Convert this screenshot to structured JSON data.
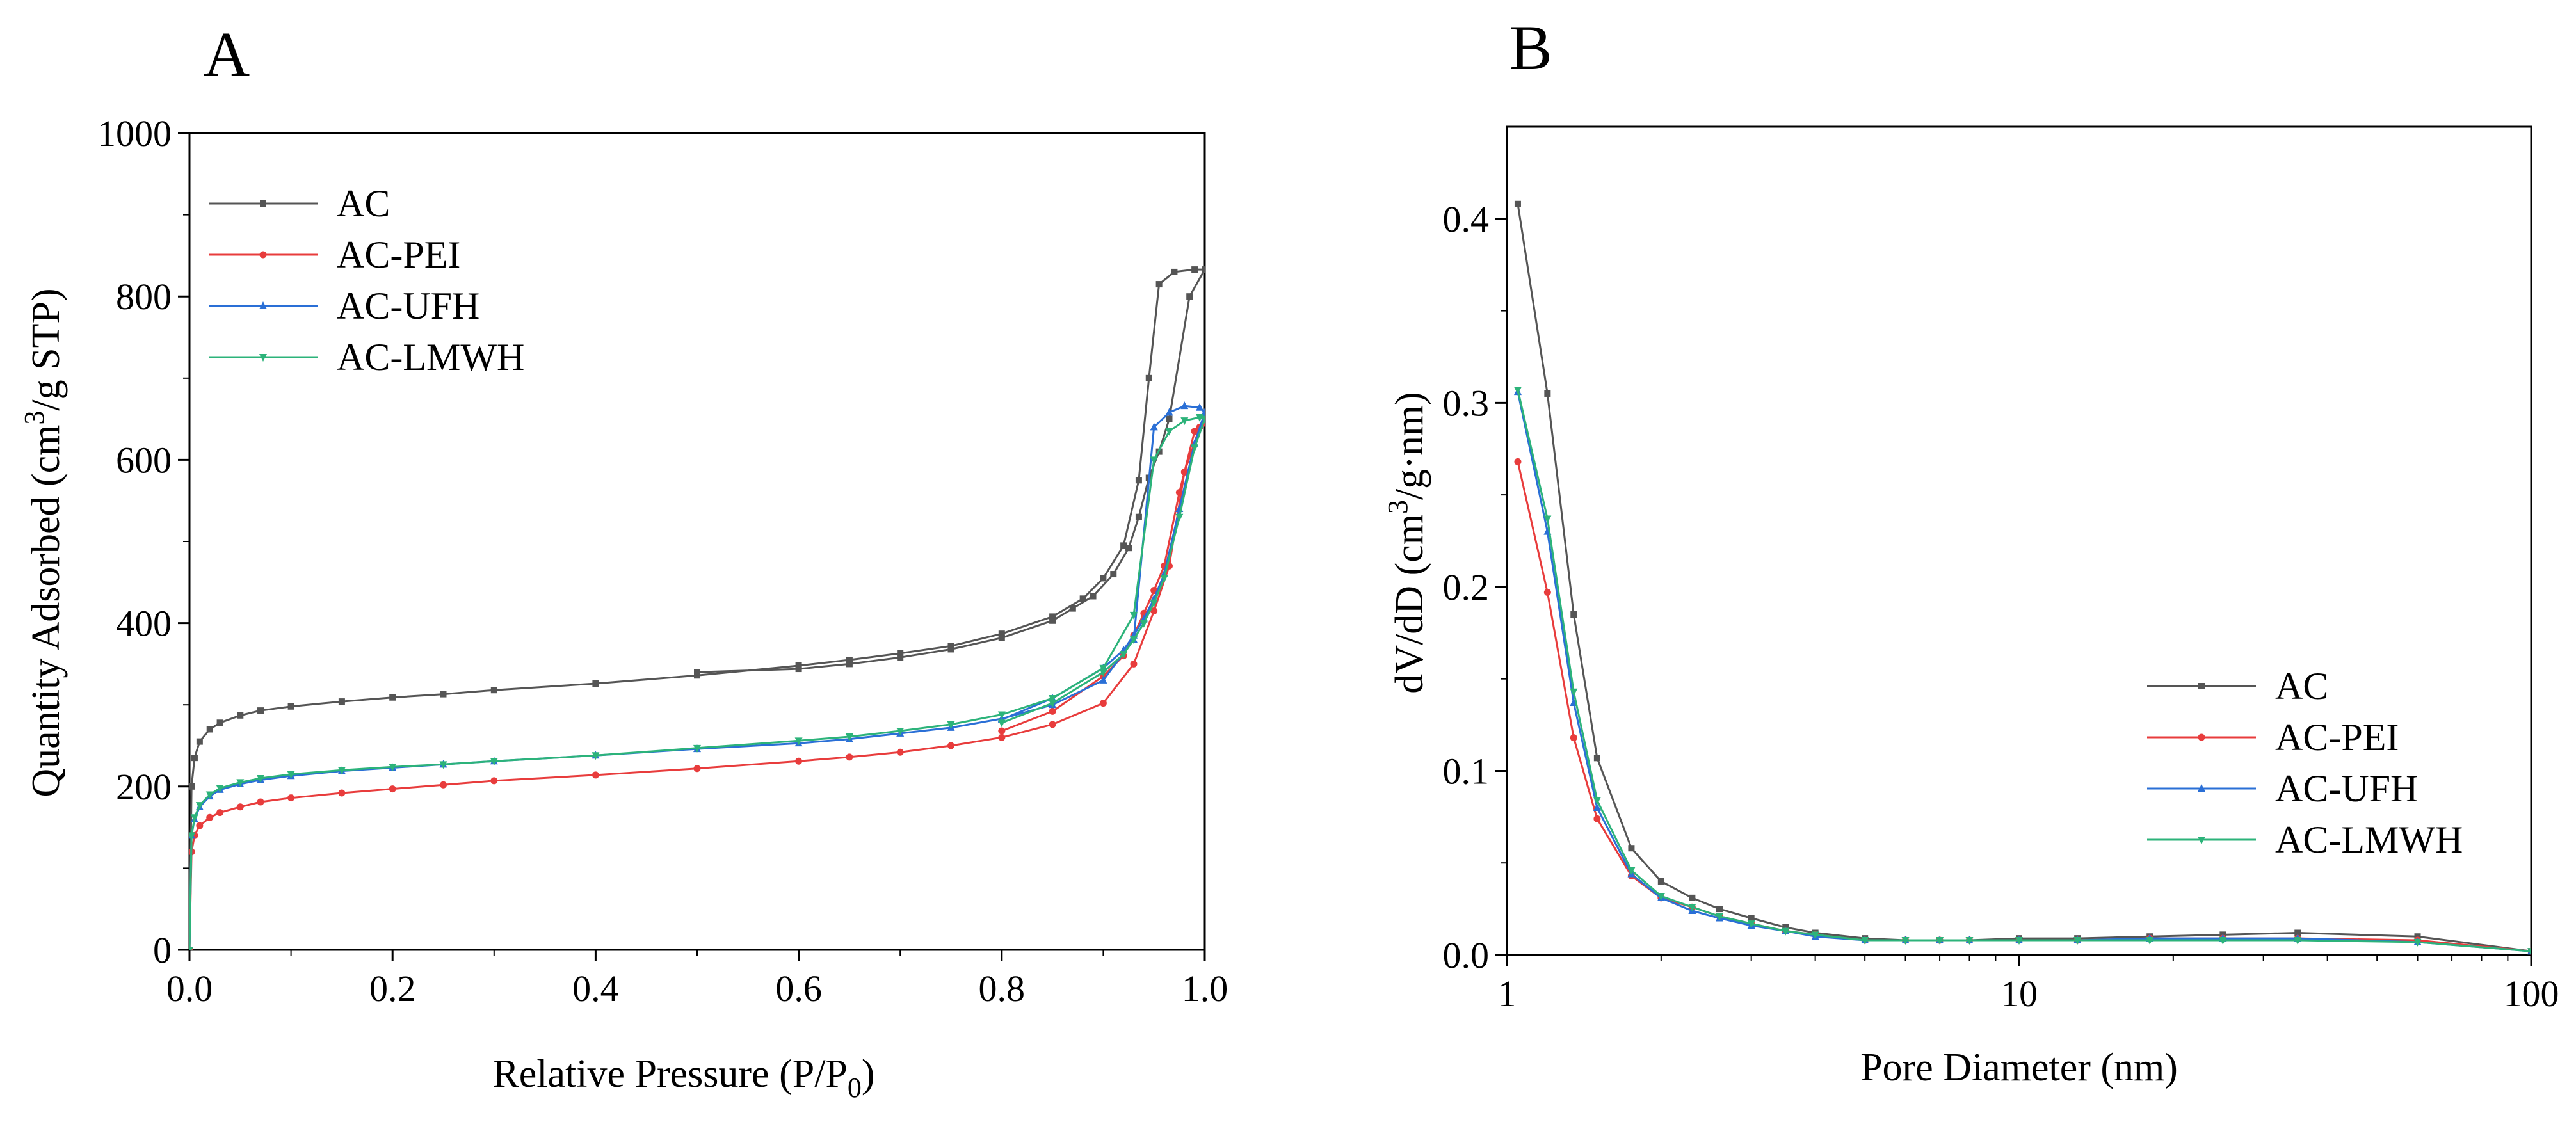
{
  "colors": {
    "AC": "#555555",
    "AC-PEI": "#e83c3c",
    "AC-UFH": "#2a6fd6",
    "AC-LMWH": "#2cb37a"
  },
  "chart_data": [
    {
      "panel": "A",
      "type": "line",
      "title": "",
      "xlabel_main": "Relative Pressure (P/P",
      "xlabel_sub": "0",
      "xlabel_close": ")",
      "ylabel_main": "Quantity Adsorbed (cm",
      "ylabel_sup": "3",
      "ylabel_rest": "/g STP)",
      "xlim": [
        0,
        1.0
      ],
      "ylim": [
        0,
        1000
      ],
      "xscale": "linear",
      "xticks": [
        0.0,
        0.2,
        0.4,
        0.6,
        0.8,
        1.0
      ],
      "xtick_labels": [
        "0.0",
        "0.2",
        "0.4",
        "0.6",
        "0.8",
        "1.0"
      ],
      "yticks": [
        0,
        200,
        400,
        600,
        800,
        1000
      ],
      "ytick_labels": [
        "0",
        "200",
        "400",
        "600",
        "800",
        "1000"
      ],
      "legend_position": "top-left",
      "series": [
        {
          "name": "AC",
          "x": [
            0.0,
            0.002,
            0.005,
            0.01,
            0.02,
            0.03,
            0.05,
            0.07,
            0.1,
            0.15,
            0.2,
            0.25,
            0.3,
            0.4,
            0.5,
            0.6,
            0.65,
            0.7,
            0.75,
            0.8,
            0.85,
            0.88,
            0.9,
            0.92,
            0.935,
            0.945,
            0.955,
            0.97,
            0.99,
            1.0,
            0.985,
            0.965,
            0.955,
            0.945,
            0.935,
            0.925,
            0.91,
            0.89,
            0.87,
            0.85,
            0.8,
            0.75,
            0.7,
            0.65,
            0.6,
            0.5
          ],
          "y": [
            0,
            200,
            235,
            255,
            270,
            278,
            287,
            293,
            298,
            304,
            309,
            313,
            318,
            326,
            336,
            348,
            355,
            363,
            372,
            387,
            408,
            430,
            455,
            495,
            575,
            700,
            815,
            830,
            833,
            833,
            800,
            650,
            610,
            578,
            530,
            492,
            460,
            433,
            418,
            403,
            382,
            368,
            358,
            350,
            344,
            340
          ]
        },
        {
          "name": "AC-PEI",
          "x": [
            0.0,
            0.002,
            0.005,
            0.01,
            0.02,
            0.03,
            0.05,
            0.07,
            0.1,
            0.15,
            0.2,
            0.25,
            0.3,
            0.4,
            0.5,
            0.6,
            0.65,
            0.7,
            0.75,
            0.8,
            0.85,
            0.9,
            0.93,
            0.95,
            0.965,
            0.98,
            0.995,
            1.0,
            0.99,
            0.975,
            0.96,
            0.95,
            0.94,
            0.93,
            0.92,
            0.9,
            0.85,
            0.8
          ],
          "y": [
            0,
            120,
            140,
            152,
            162,
            168,
            175,
            181,
            186,
            192,
            197,
            202,
            207,
            214,
            222,
            231,
            236,
            242,
            250,
            260,
            276,
            302,
            350,
            415,
            470,
            585,
            640,
            645,
            635,
            560,
            470,
            440,
            412,
            385,
            360,
            335,
            292,
            268
          ]
        },
        {
          "name": "AC-UFH",
          "x": [
            0.0,
            0.002,
            0.005,
            0.01,
            0.02,
            0.03,
            0.05,
            0.07,
            0.1,
            0.15,
            0.2,
            0.25,
            0.3,
            0.4,
            0.5,
            0.6,
            0.65,
            0.7,
            0.75,
            0.8,
            0.85,
            0.9,
            0.93,
            0.95,
            0.965,
            0.98,
            0.995,
            1.0,
            0.99,
            0.975,
            0.96,
            0.95,
            0.94,
            0.93,
            0.92,
            0.9,
            0.85,
            0.8
          ],
          "y": [
            0,
            140,
            160,
            175,
            188,
            196,
            203,
            208,
            213,
            219,
            223,
            227,
            231,
            238,
            246,
            253,
            258,
            265,
            272,
            283,
            300,
            330,
            380,
            640,
            658,
            666,
            664,
            658,
            620,
            540,
            460,
            430,
            405,
            385,
            367,
            345,
            308,
            282
          ]
        },
        {
          "name": "AC-LMWH",
          "x": [
            0.0,
            0.002,
            0.005,
            0.01,
            0.02,
            0.03,
            0.05,
            0.07,
            0.1,
            0.15,
            0.2,
            0.25,
            0.3,
            0.4,
            0.5,
            0.6,
            0.65,
            0.7,
            0.75,
            0.8,
            0.85,
            0.9,
            0.93,
            0.95,
            0.965,
            0.98,
            0.995,
            1.0,
            0.99,
            0.975,
            0.96,
            0.95,
            0.94,
            0.93,
            0.92,
            0.9,
            0.85,
            0.8
          ],
          "y": [
            0,
            140,
            162,
            177,
            190,
            198,
            205,
            210,
            215,
            220,
            224,
            227,
            231,
            238,
            247,
            256,
            261,
            268,
            276,
            288,
            308,
            345,
            410,
            600,
            635,
            648,
            652,
            650,
            615,
            530,
            455,
            425,
            400,
            380,
            362,
            340,
            302,
            278
          ]
        }
      ]
    },
    {
      "panel": "B",
      "type": "line",
      "title": "",
      "xlabel": "Pore Diameter (nm)",
      "ylabel_main": "dV/dD (cm",
      "ylabel_sup": "3",
      "ylabel_rest": "/g·nm)",
      "xlim": [
        1,
        100
      ],
      "ylim": [
        0,
        0.45
      ],
      "xscale": "log",
      "xticks": [
        1,
        10,
        100
      ],
      "xtick_labels": [
        "1",
        "10",
        "100"
      ],
      "yticks": [
        0.0,
        0.1,
        0.2,
        0.3,
        0.4
      ],
      "ytick_labels": [
        "0.0",
        "0.1",
        "0.2",
        "0.3",
        "0.4"
      ],
      "legend_position": "bottom-right",
      "series": [
        {
          "name": "AC",
          "x": [
            1.05,
            1.2,
            1.35,
            1.5,
            1.75,
            2.0,
            2.3,
            2.6,
            3.0,
            3.5,
            4.0,
            5.0,
            6.0,
            7.0,
            8.0,
            10.0,
            13.0,
            18.0,
            25.0,
            35.0,
            60.0,
            100.0
          ],
          "y": [
            0.408,
            0.305,
            0.185,
            0.107,
            0.058,
            0.04,
            0.031,
            0.025,
            0.02,
            0.015,
            0.012,
            0.009,
            0.008,
            0.008,
            0.008,
            0.009,
            0.009,
            0.01,
            0.011,
            0.012,
            0.01,
            0.002
          ]
        },
        {
          "name": "AC-PEI",
          "x": [
            1.05,
            1.2,
            1.35,
            1.5,
            1.75,
            2.0,
            2.3,
            2.6,
            3.0,
            3.5,
            4.0,
            5.0,
            6.0,
            7.0,
            8.0,
            10.0,
            13.0,
            18.0,
            25.0,
            35.0,
            60.0,
            100.0
          ],
          "y": [
            0.268,
            0.197,
            0.118,
            0.074,
            0.043,
            0.031,
            0.026,
            0.021,
            0.017,
            0.013,
            0.011,
            0.008,
            0.008,
            0.008,
            0.008,
            0.008,
            0.008,
            0.009,
            0.009,
            0.009,
            0.008,
            0.002
          ]
        },
        {
          "name": "AC-UFH",
          "x": [
            1.05,
            1.2,
            1.35,
            1.5,
            1.75,
            2.0,
            2.3,
            2.6,
            3.0,
            3.5,
            4.0,
            5.0,
            6.0,
            7.0,
            8.0,
            10.0,
            13.0,
            18.0,
            25.0,
            35.0,
            60.0,
            100.0
          ],
          "y": [
            0.306,
            0.23,
            0.137,
            0.08,
            0.044,
            0.031,
            0.024,
            0.02,
            0.016,
            0.013,
            0.01,
            0.008,
            0.008,
            0.008,
            0.008,
            0.008,
            0.008,
            0.009,
            0.009,
            0.009,
            0.007,
            0.002
          ]
        },
        {
          "name": "AC-LMWH",
          "x": [
            1.05,
            1.2,
            1.35,
            1.5,
            1.75,
            2.0,
            2.3,
            2.6,
            3.0,
            3.5,
            4.0,
            5.0,
            6.0,
            7.0,
            8.0,
            10.0,
            13.0,
            18.0,
            25.0,
            35.0,
            60.0,
            100.0
          ],
          "y": [
            0.307,
            0.237,
            0.143,
            0.084,
            0.046,
            0.032,
            0.026,
            0.021,
            0.017,
            0.013,
            0.011,
            0.008,
            0.008,
            0.008,
            0.008,
            0.008,
            0.008,
            0.008,
            0.008,
            0.008,
            0.007,
            0.002
          ]
        }
      ]
    }
  ]
}
